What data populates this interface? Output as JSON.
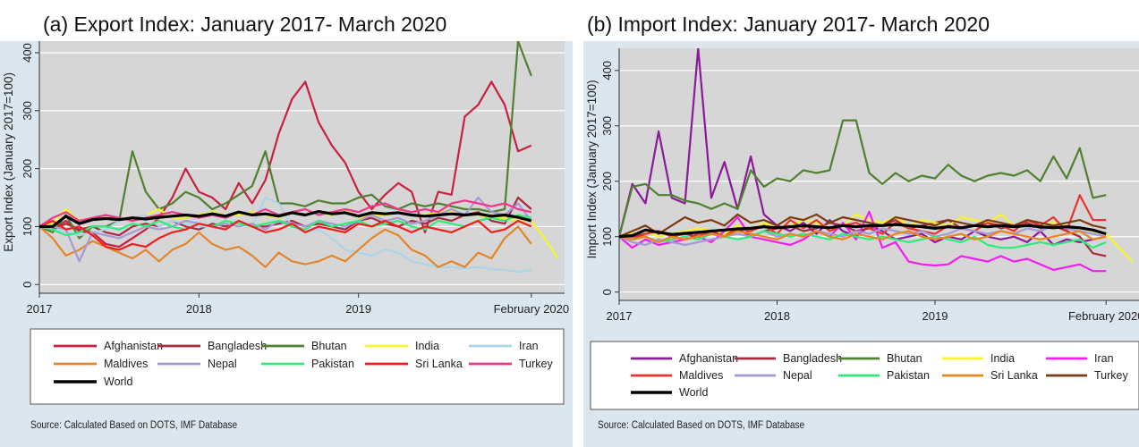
{
  "panels": [
    {
      "title": "(a) Export Index: January 2017- March 2020",
      "source": "Source: Calculated Based on DOTS, IMF Database"
    },
    {
      "title": "(b) Import Index: January 2017- March 2020",
      "source": "Source: Calculated Based on DOTS, IMF Database"
    }
  ],
  "colors": {
    "Afghanistan_a": "#c8213f",
    "Afghanistan_b": "#8b1a9a",
    "Bangladesh": "#a52d3f",
    "Bhutan": "#4f8130",
    "India": "#f6f52a",
    "Iran_a": "#a9d6e8",
    "Iran_b": "#f01ef0",
    "Maldives_a": "#e3862b",
    "Maldives_b": "#e8342e",
    "Nepal": "#a59ad6",
    "Pakistan": "#2fec7a",
    "Sri Lanka_a": "#f21c1c",
    "Sri Lanka_b": "#e8861e",
    "Turkey_a": "#f0368a",
    "Turkey_b": "#7b3b10",
    "World": "#000000"
  },
  "chart_data": [
    {
      "type": "line",
      "title": "(a) Export Index: January 2017- March 2020",
      "ylabel": "Export Index (January 2017=100)",
      "xlabel": "",
      "x_ticks": [
        "2017",
        "2018",
        "2019",
        "February 2020"
      ],
      "y_ticks": [
        "0",
        "100",
        "200",
        "300",
        "400"
      ],
      "ylim": [
        -15,
        420
      ],
      "x_unit": "month index from January 2017",
      "xlim": [
        0,
        39.5
      ],
      "grid": true,
      "legend": "bottom",
      "series": [
        {
          "name": "Afghanistan",
          "color_key": "Afghanistan_a",
          "values": [
            100,
            95,
            110,
            92,
            90,
            70,
            65,
            80,
            95,
            115,
            150,
            200,
            160,
            150,
            130,
            175,
            140,
            180,
            260,
            320,
            350,
            280,
            240,
            210,
            160,
            130,
            155,
            175,
            160,
            90,
            160,
            155,
            290,
            310,
            350,
            310,
            230,
            240
          ]
        },
        {
          "name": "Bangladesh",
          "color_key": "Bangladesh",
          "values": [
            100,
            95,
            105,
            95,
            100,
            90,
            85,
            100,
            105,
            100,
            110,
            100,
            95,
            105,
            100,
            110,
            100,
            100,
            105,
            110,
            100,
            105,
            100,
            95,
            110,
            115,
            105,
            100,
            110,
            105,
            115,
            110,
            120,
            125,
            110,
            105,
            150,
            130
          ]
        },
        {
          "name": "Bhutan",
          "color_key": "Bhutan",
          "values": [
            100,
            90,
            120,
            80,
            100,
            100,
            110,
            230,
            160,
            130,
            140,
            160,
            150,
            130,
            140,
            155,
            170,
            230,
            140,
            140,
            135,
            145,
            140,
            140,
            150,
            155,
            135,
            130,
            140,
            135,
            140,
            135,
            130,
            130,
            125,
            130,
            420,
            360
          ]
        },
        {
          "name": "India",
          "color_key": "India",
          "values": [
            100,
            105,
            130,
            110,
            115,
            115,
            110,
            115,
            120,
            130,
            115,
            115,
            120,
            125,
            120,
            120,
            125,
            120,
            115,
            125,
            120,
            125,
            120,
            130,
            115,
            120,
            120,
            125,
            120,
            120,
            125,
            125,
            120,
            120,
            115,
            115,
            110,
            110,
            80,
            45
          ]
        },
        {
          "name": "Iran",
          "color_key": "Iran_a",
          "values": [
            100,
            95,
            90,
            85,
            90,
            95,
            110,
            115,
            120,
            100,
            110,
            105,
            100,
            100,
            95,
            110,
            100,
            150,
            140,
            100,
            90,
            95,
            80,
            60,
            55,
            50,
            60,
            55,
            40,
            35,
            30,
            30,
            28,
            30,
            27,
            25,
            22,
            25
          ]
        },
        {
          "name": "Maldives",
          "color_key": "Maldives_a",
          "values": [
            100,
            80,
            50,
            60,
            75,
            65,
            55,
            45,
            60,
            40,
            60,
            70,
            90,
            70,
            60,
            65,
            50,
            30,
            55,
            40,
            35,
            40,
            50,
            40,
            60,
            80,
            95,
            85,
            60,
            50,
            30,
            40,
            30,
            55,
            45,
            80,
            100,
            70
          ]
        },
        {
          "name": "Nepal",
          "color_key": "Nepal",
          "values": [
            100,
            100,
            95,
            40,
            90,
            85,
            80,
            90,
            100,
            95,
            100,
            110,
            105,
            100,
            105,
            100,
            105,
            95,
            110,
            105,
            100,
            110,
            105,
            100,
            110,
            120,
            110,
            115,
            105,
            110,
            120,
            130,
            120,
            150,
            125,
            120,
            140,
            110
          ]
        },
        {
          "name": "Pakistan",
          "color_key": "Pakistan",
          "values": [
            100,
            95,
            85,
            90,
            100,
            100,
            95,
            105,
            100,
            110,
            100,
            95,
            105,
            100,
            110,
            105,
            100,
            105,
            110,
            100,
            95,
            110,
            100,
            105,
            110,
            100,
            105,
            110,
            100,
            95,
            110,
            105,
            100,
            110,
            115,
            110,
            120,
            115
          ]
        },
        {
          "name": "Sri Lanka",
          "color_key": "Sri Lanka_a",
          "values": [
            100,
            110,
            95,
            100,
            85,
            65,
            60,
            70,
            65,
            80,
            90,
            95,
            105,
            100,
            95,
            110,
            100,
            90,
            95,
            105,
            90,
            100,
            95,
            90,
            105,
            100,
            110,
            100,
            90,
            100,
            95,
            90,
            100,
            110,
            90,
            95,
            110,
            100
          ]
        },
        {
          "name": "Turkey",
          "color_key": "Turkey_a",
          "values": [
            100,
            115,
            125,
            110,
            115,
            120,
            115,
            110,
            115,
            120,
            125,
            120,
            115,
            120,
            115,
            125,
            120,
            130,
            120,
            125,
            130,
            120,
            125,
            130,
            125,
            135,
            140,
            130,
            125,
            130,
            125,
            140,
            145,
            140,
            135,
            140,
            130,
            125
          ]
        },
        {
          "name": "World",
          "color_key": "World",
          "values": [
            100,
            100,
            118,
            105,
            112,
            114,
            112,
            115,
            113,
            116,
            118,
            120,
            118,
            122,
            118,
            125,
            120,
            122,
            118,
            124,
            120,
            126,
            122,
            124,
            118,
            124,
            122,
            124,
            120,
            118,
            120,
            122,
            120,
            122,
            118,
            120,
            116,
            110
          ]
        }
      ]
    },
    {
      "type": "line",
      "title": "(b) Import Index: January 2017- March 2020",
      "ylabel": "Import Index (January 2017=100)",
      "xlabel": "",
      "x_ticks": [
        "2017",
        "2018",
        "2019",
        "February 2020"
      ],
      "y_ticks": [
        "0",
        "100",
        "200",
        "300",
        "400"
      ],
      "ylim": [
        -15,
        440
      ],
      "x_unit": "month index from January 2017",
      "xlim": [
        0,
        39.5
      ],
      "grid": true,
      "legend": "bottom",
      "series": [
        {
          "name": "Afghanistan",
          "color_key": "Afghanistan_b",
          "values": [
            100,
            195,
            160,
            290,
            170,
            160,
            440,
            170,
            235,
            150,
            245,
            140,
            120,
            110,
            125,
            105,
            130,
            110,
            100,
            120,
            110,
            95,
            100,
            105,
            90,
            100,
            95,
            110,
            100,
            95,
            100,
            90,
            110,
            85,
            95,
            90,
            95,
            100
          ]
        },
        {
          "name": "Bangladesh",
          "color_key": "Bangladesh",
          "values": [
            100,
            100,
            105,
            110,
            100,
            105,
            100,
            110,
            105,
            115,
            100,
            110,
            115,
            120,
            110,
            115,
            125,
            120,
            110,
            115,
            120,
            130,
            115,
            120,
            125,
            130,
            115,
            120,
            125,
            115,
            120,
            125,
            115,
            120,
            110,
            100,
            70,
            65
          ]
        },
        {
          "name": "Bhutan",
          "color_key": "Bhutan",
          "values": [
            100,
            190,
            195,
            175,
            175,
            165,
            160,
            150,
            160,
            150,
            220,
            190,
            205,
            200,
            220,
            215,
            220,
            310,
            310,
            215,
            195,
            215,
            200,
            210,
            205,
            230,
            210,
            200,
            210,
            215,
            210,
            220,
            200,
            245,
            205,
            260,
            170,
            175
          ]
        },
        {
          "name": "India",
          "color_key": "India",
          "values": [
            100,
            105,
            110,
            100,
            105,
            110,
            115,
            110,
            105,
            120,
            110,
            125,
            115,
            120,
            130,
            125,
            115,
            120,
            140,
            130,
            125,
            135,
            120,
            130,
            125,
            120,
            135,
            130,
            125,
            140,
            120,
            130,
            120,
            125,
            120,
            115,
            110,
            105,
            80,
            55
          ]
        },
        {
          "name": "Iran",
          "color_key": "Iran_b",
          "values": [
            100,
            80,
            95,
            85,
            90,
            95,
            100,
            90,
            110,
            135,
            100,
            95,
            90,
            85,
            95,
            110,
            100,
            125,
            95,
            145,
            80,
            90,
            55,
            50,
            48,
            50,
            65,
            60,
            55,
            65,
            55,
            60,
            50,
            40,
            45,
            50,
            38,
            38
          ]
        },
        {
          "name": "Maldives",
          "color_key": "Maldives_b",
          "values": [
            100,
            95,
            105,
            110,
            100,
            95,
            105,
            110,
            100,
            115,
            110,
            120,
            105,
            130,
            115,
            130,
            110,
            120,
            125,
            115,
            105,
            125,
            115,
            110,
            105,
            120,
            115,
            110,
            125,
            120,
            110,
            130,
            120,
            135,
            110,
            175,
            130,
            130
          ]
        },
        {
          "name": "Nepal",
          "color_key": "Nepal",
          "values": [
            100,
            90,
            85,
            95,
            90,
            85,
            90,
            95,
            100,
            105,
            100,
            110,
            100,
            105,
            100,
            110,
            105,
            100,
            110,
            105,
            115,
            110,
            105,
            110,
            100,
            105,
            115,
            110,
            105,
            110,
            105,
            115,
            110,
            120,
            115,
            110,
            105,
            100
          ]
        },
        {
          "name": "Pakistan",
          "color_key": "Pakistan",
          "values": [
            100,
            95,
            100,
            90,
            95,
            100,
            95,
            105,
            100,
            95,
            100,
            110,
            105,
            100,
            105,
            100,
            95,
            105,
            100,
            95,
            100,
            95,
            90,
            95,
            100,
            95,
            90,
            100,
            85,
            80,
            80,
            85,
            90,
            85,
            90,
            95,
            80,
            90
          ]
        },
        {
          "name": "Sri Lanka",
          "color_key": "Sri Lanka_b",
          "values": [
            100,
            95,
            100,
            90,
            100,
            95,
            100,
            105,
            100,
            110,
            105,
            100,
            95,
            105,
            100,
            110,
            100,
            95,
            105,
            100,
            95,
            105,
            110,
            100,
            95,
            100,
            105,
            95,
            100,
            110,
            105,
            100,
            95,
            100,
            105,
            110,
            95,
            100
          ]
        },
        {
          "name": "Turkey",
          "color_key": "Turkey_b",
          "values": [
            100,
            110,
            120,
            105,
            120,
            135,
            125,
            130,
            120,
            140,
            125,
            130,
            120,
            135,
            130,
            140,
            125,
            135,
            130,
            125,
            120,
            135,
            130,
            125,
            120,
            130,
            125,
            120,
            130,
            125,
            120,
            130,
            125,
            120,
            125,
            130,
            120,
            115
          ]
        },
        {
          "name": "World",
          "color_key": "World",
          "values": [
            100,
            102,
            112,
            108,
            104,
            106,
            108,
            110,
            112,
            114,
            115,
            118,
            116,
            118,
            120,
            118,
            116,
            120,
            118,
            120,
            120,
            122,
            120,
            118,
            115,
            118,
            116,
            120,
            118,
            120,
            118,
            120,
            118,
            116,
            118,
            116,
            112,
            105
          ]
        }
      ]
    }
  ]
}
